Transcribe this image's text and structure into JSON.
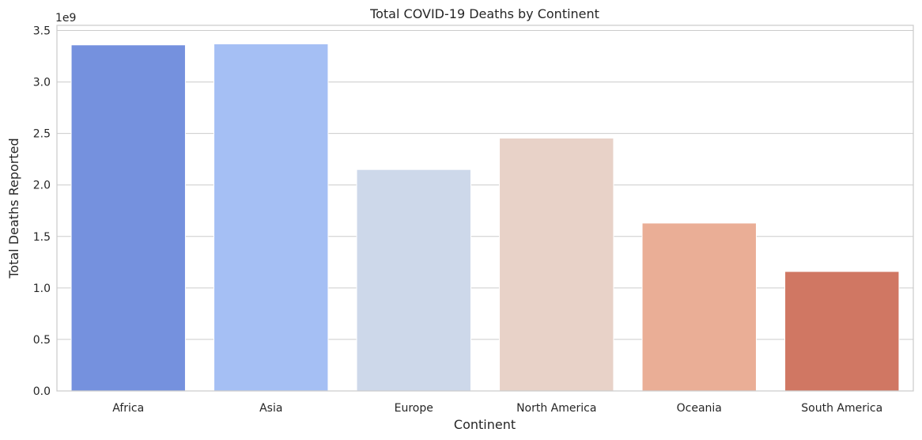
{
  "chart_data": {
    "type": "bar",
    "title": "Total COVID-19 Deaths by Continent",
    "xlabel": "Continent",
    "ylabel": "Total Deaths Reported",
    "y_offset_label": "1e9",
    "y_scale_divisor": 1000000000,
    "categories": [
      "Africa",
      "Asia",
      "Europe",
      "North America",
      "Oceania",
      "South America"
    ],
    "values": [
      3360000000,
      3370000000,
      2150000000,
      2455000000,
      1630000000,
      1160000000
    ],
    "colors": [
      "#7591de",
      "#a5bff4",
      "#cdd8ea",
      "#e8d2c8",
      "#eaae96",
      "#d07763"
    ],
    "ylim": [
      0,
      3550000000
    ],
    "yticks": [
      0,
      0.5,
      1.0,
      1.5,
      2.0,
      2.5,
      3.0,
      3.5
    ],
    "grid": "horizontal",
    "legend": "none"
  }
}
